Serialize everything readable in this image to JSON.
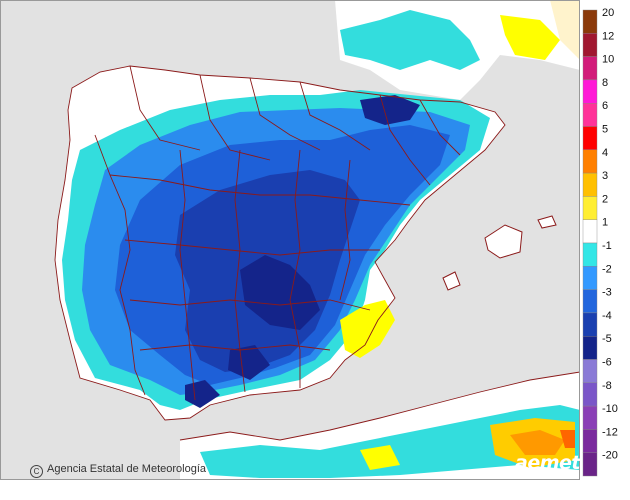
{
  "map": {
    "credit_text": "Agencia Estatal de Meteorología",
    "copyright_symbol": "C",
    "logo_text": "aemet",
    "colors": {
      "sea": "#e0e0e0",
      "land_neutral": "#ffffff",
      "border": "#8b1a1a",
      "c_m1": "#33dddd",
      "c_m2": "#2b8cee",
      "c_m3": "#1e60d8",
      "c_m4": "#1a3fb0",
      "c_m5": "#14248a",
      "c_p1": "#ffff00",
      "c_p2": "#ffcc00",
      "c_p3": "#ff9900",
      "c_p4": "#ff6600"
    }
  },
  "legend": {
    "title": "",
    "entries": [
      {
        "label": "20",
        "color": "#8b3a0a"
      },
      {
        "label": "12",
        "color": "#a01830"
      },
      {
        "label": "10",
        "color": "#d21c7a"
      },
      {
        "label": "8",
        "color": "#ff1ad6"
      },
      {
        "label": "6",
        "color": "#ff3399"
      },
      {
        "label": "5",
        "color": "#ff0000"
      },
      {
        "label": "4",
        "color": "#ff8000"
      },
      {
        "label": "3",
        "color": "#ffc000"
      },
      {
        "label": "2",
        "color": "#ffee33"
      },
      {
        "label": "1",
        "color": "#ffffff"
      },
      {
        "label": "-1",
        "color": "#33e6e6"
      },
      {
        "label": "-2",
        "color": "#3399ff"
      },
      {
        "label": "-3",
        "color": "#2266dd"
      },
      {
        "label": "-4",
        "color": "#1a40b0"
      },
      {
        "label": "-5",
        "color": "#14248a"
      },
      {
        "label": "-6",
        "color": "#8a7ad6"
      },
      {
        "label": "-8",
        "color": "#7a56c8"
      },
      {
        "label": "-10",
        "color": "#8a3fb6"
      },
      {
        "label": "-12",
        "color": "#7a2a9e"
      },
      {
        "label": "-20",
        "color": "#6a2488"
      }
    ]
  }
}
